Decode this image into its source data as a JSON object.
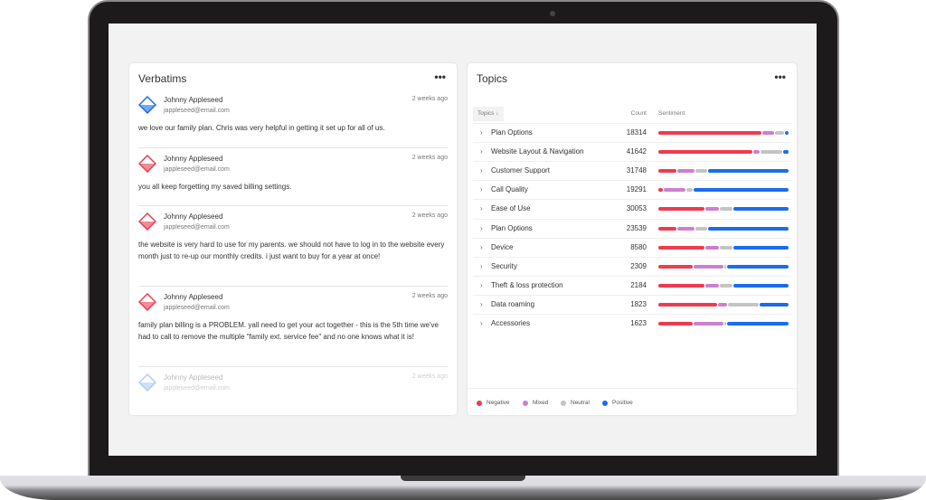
{
  "verbatims": {
    "title": "Verbatims",
    "more": "•••",
    "items": [
      {
        "name": "Johnny Appleseed",
        "email": "jappleseed@email.com",
        "time": "2 weeks ago",
        "sentiment": "positive",
        "text": "we love our family plan.  Chris was very helpful in getting it set up for all of us."
      },
      {
        "name": "Johnny Appleseed",
        "email": "jappleseed@email.com",
        "time": "2 weeks ago",
        "sentiment": "negative",
        "text": "you all keep forgetting my saved billing settings."
      },
      {
        "name": "Johnny Appleseed",
        "email": "jappleseed@email.com",
        "time": "2 weeks ago",
        "sentiment": "negative",
        "text": "the website is very hard to use for my parents.  we should not have to log in to the website every month just to re-up our monthly credits. i just want to buy for a year at once!"
      },
      {
        "name": "Johnny Appleseed",
        "email": "jappleseed@email.com",
        "time": "2 weeks ago",
        "sentiment": "negative",
        "text": "family plan billing is a PROBLEM.  yall need to get your act together - this is the 5th time we've had to call to remove the multiple \"family ext. service fee\" and no one knows what it is!"
      },
      {
        "name": "Johnny Appleseed",
        "email": "jappleseed@email.com",
        "time": "2 weeks ago",
        "sentiment": "positive",
        "text": ""
      }
    ]
  },
  "topics": {
    "title": "Topics",
    "more": "•••",
    "columns": {
      "topic": "Topics",
      "count": "Count",
      "sentiment": "Sentiment"
    },
    "colors": {
      "negative": "#ee3b4f",
      "mixed": "#cd7fcf",
      "neutral": "#c4c4c4",
      "positive": "#1a6cf0"
    },
    "rows": [
      {
        "label": "Plan Options",
        "count": "18314",
        "sentiment": [
          81,
          9,
          7,
          3
        ]
      },
      {
        "label": "Website Layout & Navigation",
        "count": "41642",
        "sentiment": [
          74,
          5,
          17,
          4
        ]
      },
      {
        "label": "Customer Support",
        "count": "31748",
        "sentiment": [
          14,
          14,
          9,
          63
        ]
      },
      {
        "label": "Call Quality",
        "count": "19291",
        "sentiment": [
          3.5,
          17,
          5,
          74.5
        ]
      },
      {
        "label": "Ease of Use",
        "count": "30053",
        "sentiment": [
          36,
          11,
          10,
          43
        ]
      },
      {
        "label": "Plan Options",
        "count": "23539",
        "sentiment": [
          14,
          14,
          9,
          63
        ]
      },
      {
        "label": "Device",
        "count": "8580",
        "sentiment": [
          36,
          11,
          10,
          43
        ]
      },
      {
        "label": "Security",
        "count": "2309",
        "sentiment": [
          27,
          23,
          2,
          48
        ]
      },
      {
        "label": "Theft & loss protection",
        "count": "2184",
        "sentiment": [
          36,
          11,
          10,
          43
        ]
      },
      {
        "label": "Data roaming",
        "count": "1823",
        "sentiment": [
          46,
          7,
          24,
          23
        ]
      },
      {
        "label": "Accessories",
        "count": "1623",
        "sentiment": [
          27,
          23,
          2,
          48
        ]
      }
    ],
    "legend": [
      "Negative",
      "Mixed",
      "Neutral",
      "Positive"
    ]
  }
}
